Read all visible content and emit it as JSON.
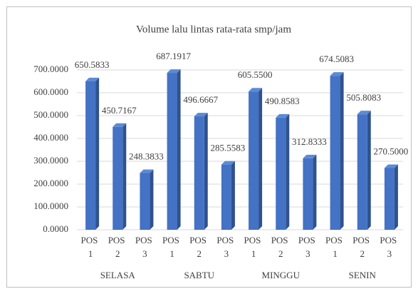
{
  "chart_data": {
    "type": "bar3d",
    "title": "Volume lalu lintas rata-rata smp/jam",
    "categories": [
      "POS 1",
      "POS 2",
      "POS 3",
      "POS 1",
      "POS 2",
      "POS 3",
      "POS 1",
      "POS 2",
      "POS 3",
      "POS 1",
      "POS 2",
      "POS 3"
    ],
    "groups": [
      "SELASA",
      "SABTU",
      "MINGGU",
      "SENIN"
    ],
    "values": [
      650.5833,
      450.7167,
      248.3833,
      687.1917,
      496.6667,
      285.5583,
      605.55,
      490.8583,
      312.8333,
      674.5083,
      505.8083,
      270.5
    ],
    "value_labels": [
      "650.5833",
      "450.7167",
      "248.3833",
      "687.1917",
      "496.6667",
      "285.5583",
      "605.5500",
      "490.8583",
      "312.8333",
      "674.5083",
      "505.8083",
      "270.5000"
    ],
    "color": "#4472c4",
    "ylim": [
      0,
      700
    ],
    "yticks": [
      {
        "value": 0,
        "label": "0.0000"
      },
      {
        "value": 100,
        "label": "100.0000"
      },
      {
        "value": 200,
        "label": "200.0000"
      },
      {
        "value": 300,
        "label": "300.0000"
      },
      {
        "value": 400,
        "label": "400.0000"
      },
      {
        "value": 500,
        "label": "500.0000"
      },
      {
        "value": 600,
        "label": "600.0000"
      },
      {
        "value": 700,
        "label": "700.0000"
      }
    ],
    "grid": true
  }
}
